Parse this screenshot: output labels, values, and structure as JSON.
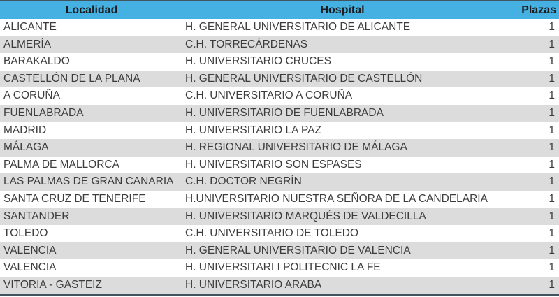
{
  "chart_data": {
    "type": "table",
    "columns": [
      "Localidad",
      "Hospital",
      "Plazas"
    ],
    "rows": [
      [
        "ALICANTE",
        "H. GENERAL UNIVERSITARIO DE ALICANTE",
        1
      ],
      [
        "ALMERÍA",
        "C.H. TORRECÁRDENAS",
        1
      ],
      [
        "BARAKALDO",
        "H. UNIVERSITARIO CRUCES",
        1
      ],
      [
        "CASTELLÓN DE LA PLANA",
        "H. GENERAL UNIVERSITARIO DE CASTELLÓN",
        1
      ],
      [
        "A CORUÑA",
        "C.H. UNIVERSITARIO A CORUÑA",
        1
      ],
      [
        "FUENLABRADA",
        "H. UNIVERSITARIO DE FUENLABRADA",
        1
      ],
      [
        "MADRID",
        "H. UNIVERSITARIO LA PAZ",
        1
      ],
      [
        "MÁLAGA",
        "H. REGIONAL UNIVERSITARIO DE MÁLAGA",
        1
      ],
      [
        "PALMA DE MALLORCA",
        "H. UNIVERSITARIO SON ESPASES",
        1
      ],
      [
        "LAS PALMAS DE GRAN CANARIA",
        "C.H. DOCTOR NEGRÍN",
        1
      ],
      [
        "SANTA CRUZ DE TENERIFE",
        "H.UNIVERSITARIO NUESTRA SEÑORA DE LA CANDELARIA",
        1
      ],
      [
        "SANTANDER",
        "H. UNIVERSITARIO MARQUÉS DE VALDECILLA",
        1
      ],
      [
        "TOLEDO",
        "C.H. UNIVERSITARIO DE TOLEDO",
        1
      ],
      [
        "VALENCIA",
        "H. GENERAL UNIVERSITARIO DE VALENCIA",
        1
      ],
      [
        "VALENCIA",
        "H. UNIVERSITARI I POLITECNIC LA FE",
        1
      ],
      [
        "VITORIA - GASTEIZ",
        "H. UNIVERSITARIO ARABA",
        1
      ]
    ],
    "title": "",
    "layout_hints": {
      "zebra_striping": true,
      "plazas_alignment": "right",
      "header_alignment": "center"
    }
  },
  "colors": {
    "header_background": "#45b0e2",
    "header_text": "#1c1c1c",
    "body_text": "#3c3c3c",
    "row_stripe": "#dcdcdc",
    "row_plain": "#ffffff",
    "table_border": "#44545f"
  }
}
